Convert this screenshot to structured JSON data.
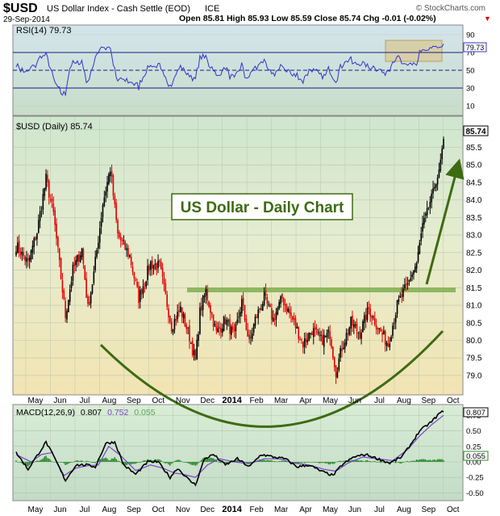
{
  "header": {
    "symbol": "$USD",
    "description": "US Dollar Index - Cash Settle (EOD)",
    "exchange": "ICE",
    "date": "29-Sep-2014",
    "ohlc": "Open 85.81  High 85.93  Low 85.59  Close 85.74  Chg -0.01 (-0.02%)",
    "source": "© StockCharts.com",
    "close_marker": "▼"
  },
  "colors": {
    "up_candle": "#000000",
    "down_candle": "#e00000",
    "rsi_line": "#3333cc",
    "macd_line": "#000000",
    "signal_line": "#7744cc",
    "histogram": "#2c8a2c",
    "annotation": "#3d6b12",
    "support_band": "#7fae4f"
  },
  "chart_data": [
    {
      "type": "line",
      "title": "RSI(14) 79.73",
      "series": [
        {
          "name": "RSI(14)",
          "last": 79.73
        }
      ],
      "yticks": [
        "90",
        "70",
        "50",
        "30",
        "10"
      ],
      "reference_lines": [
        70,
        50,
        30
      ],
      "ylim": [
        0,
        100
      ],
      "last_label": "79.73"
    },
    {
      "type": "candlestick",
      "title": "$USD (Daily) 85.74",
      "annotation": "US Dollar - Daily Chart",
      "last_value": 85.74,
      "last_label": "85.74",
      "ylim": [
        78.7,
        86.2
      ],
      "yticks": [
        "86.0",
        "85.5",
        "85.0",
        "84.5",
        "84.0",
        "83.5",
        "83.0",
        "82.5",
        "82.0",
        "81.5",
        "81.0",
        "80.5",
        "80.0",
        "79.5",
        "79.0"
      ],
      "support_level": 81.5,
      "x_months": [
        "May",
        "Jun",
        "Jul",
        "Aug",
        "Sep",
        "Oct",
        "Nov",
        "Dec",
        "2014",
        "Feb",
        "Mar",
        "Apr",
        "May",
        "Jun",
        "Jul",
        "Aug",
        "Sep",
        "Oct"
      ],
      "anchors": [
        [
          0,
          82.7
        ],
        [
          8,
          82.2
        ],
        [
          14,
          83.1
        ],
        [
          20,
          84.6
        ],
        [
          25,
          83.6
        ],
        [
          33,
          80.7
        ],
        [
          38,
          82.0
        ],
        [
          44,
          82.6
        ],
        [
          48,
          80.9
        ],
        [
          52,
          81.9
        ],
        [
          58,
          83.9
        ],
        [
          63,
          84.9
        ],
        [
          68,
          83.0
        ],
        [
          76,
          82.4
        ],
        [
          82,
          81.2
        ],
        [
          90,
          82.2
        ],
        [
          96,
          82.1
        ],
        [
          104,
          80.4
        ],
        [
          110,
          80.9
        ],
        [
          116,
          80.1
        ],
        [
          120,
          79.4
        ],
        [
          123,
          80.8
        ],
        [
          127,
          81.4
        ],
        [
          134,
          80.2
        ],
        [
          140,
          80.6
        ],
        [
          146,
          80.1
        ],
        [
          151,
          81.1
        ],
        [
          156,
          79.9
        ],
        [
          160,
          80.6
        ],
        [
          166,
          81.2
        ],
        [
          172,
          80.6
        ],
        [
          178,
          81.2
        ],
        [
          186,
          80.5
        ],
        [
          192,
          79.9
        ],
        [
          198,
          80.3
        ],
        [
          204,
          80.0
        ],
        [
          210,
          80.2
        ],
        [
          214,
          79.1
        ],
        [
          218,
          79.8
        ],
        [
          224,
          80.5
        ],
        [
          230,
          80.2
        ],
        [
          236,
          80.9
        ],
        [
          243,
          80.3
        ],
        [
          249,
          79.9
        ],
        [
          255,
          81.0
        ],
        [
          262,
          81.6
        ],
        [
          268,
          82.2
        ],
        [
          272,
          83.3
        ],
        [
          276,
          83.8
        ],
        [
          280,
          84.4
        ],
        [
          283,
          84.8
        ],
        [
          286,
          85.74
        ]
      ]
    },
    {
      "type": "line",
      "title": "MACD(12,26,9)",
      "series": [
        {
          "name": "MACD(12,26,9)",
          "last": 0.807
        },
        {
          "name": "Signal",
          "last": 0.752
        },
        {
          "name": "Histogram",
          "last": 0.055
        }
      ],
      "legend_values": [
        "0.807",
        "0.752",
        "0.055"
      ],
      "yticks": [
        "0.75",
        "0.50",
        "0.25",
        "0.00",
        "-0.25",
        "-0.50"
      ],
      "ylim": [
        -0.6,
        0.9
      ],
      "last_labels": [
        "0.807",
        "0.055"
      ],
      "x_months": [
        "May",
        "Jun",
        "Jul",
        "Aug",
        "Sep",
        "Oct",
        "Nov",
        "Dec",
        "2014",
        "Feb",
        "Mar",
        "Apr",
        "May",
        "Jun",
        "Jul",
        "Aug",
        "Sep",
        "Oct"
      ],
      "macd_anchors": [
        [
          0,
          0.15
        ],
        [
          8,
          -0.12
        ],
        [
          14,
          0.1
        ],
        [
          20,
          0.32
        ],
        [
          26,
          0.05
        ],
        [
          33,
          -0.3
        ],
        [
          40,
          -0.05
        ],
        [
          47,
          -0.05
        ],
        [
          53,
          -0.08
        ],
        [
          60,
          0.3
        ],
        [
          66,
          0.32
        ],
        [
          72,
          -0.05
        ],
        [
          80,
          -0.2
        ],
        [
          88,
          0.0
        ],
        [
          95,
          0.0
        ],
        [
          103,
          -0.25
        ],
        [
          108,
          -0.1
        ],
        [
          116,
          -0.3
        ],
        [
          120,
          -0.37
        ],
        [
          126,
          0.05
        ],
        [
          132,
          0.12
        ],
        [
          140,
          -0.05
        ],
        [
          148,
          0.05
        ],
        [
          156,
          -0.08
        ],
        [
          164,
          0.12
        ],
        [
          172,
          0.08
        ],
        [
          180,
          0.05
        ],
        [
          188,
          -0.08
        ],
        [
          196,
          -0.05
        ],
        [
          204,
          -0.15
        ],
        [
          212,
          -0.22
        ],
        [
          218,
          -0.05
        ],
        [
          226,
          0.08
        ],
        [
          234,
          0.12
        ],
        [
          242,
          0.05
        ],
        [
          250,
          -0.02
        ],
        [
          258,
          0.08
        ],
        [
          264,
          0.28
        ],
        [
          270,
          0.5
        ],
        [
          278,
          0.65
        ],
        [
          284,
          0.8
        ],
        [
          286,
          0.807
        ]
      ],
      "signal_anchors": [
        [
          0,
          0.12
        ],
        [
          10,
          0.0
        ],
        [
          17,
          0.12
        ],
        [
          24,
          0.15
        ],
        [
          32,
          -0.22
        ],
        [
          40,
          -0.1
        ],
        [
          48,
          -0.06
        ],
        [
          55,
          -0.05
        ],
        [
          62,
          0.25
        ],
        [
          70,
          0.1
        ],
        [
          80,
          -0.14
        ],
        [
          90,
          -0.05
        ],
        [
          98,
          -0.1
        ],
        [
          106,
          -0.18
        ],
        [
          112,
          -0.2
        ],
        [
          120,
          -0.25
        ],
        [
          128,
          -0.05
        ],
        [
          136,
          0.05
        ],
        [
          146,
          0.0
        ],
        [
          156,
          -0.03
        ],
        [
          166,
          0.05
        ],
        [
          176,
          0.05
        ],
        [
          186,
          -0.02
        ],
        [
          196,
          -0.05
        ],
        [
          206,
          -0.12
        ],
        [
          214,
          -0.15
        ],
        [
          222,
          -0.02
        ],
        [
          232,
          0.08
        ],
        [
          242,
          0.05
        ],
        [
          252,
          0.02
        ],
        [
          262,
          0.2
        ],
        [
          270,
          0.42
        ],
        [
          278,
          0.6
        ],
        [
          286,
          0.752
        ]
      ]
    }
  ]
}
